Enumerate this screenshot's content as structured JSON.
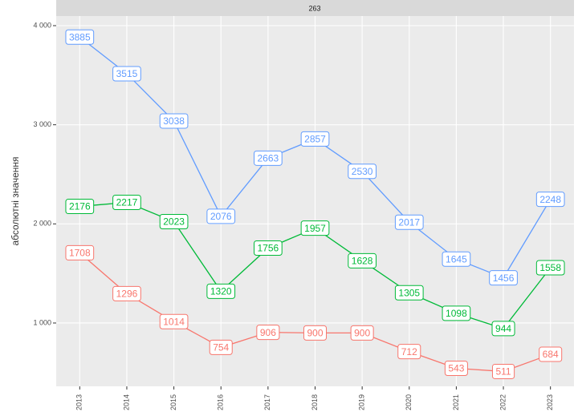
{
  "chart_data": {
    "type": "line",
    "title": "263",
    "ylabel": "абсолютні значення",
    "categories": [
      "2013",
      "2014",
      "2015",
      "2016",
      "2017",
      "2018",
      "2019",
      "2020",
      "2021",
      "2022",
      "2023"
    ],
    "series": [
      {
        "color": "#619CFF",
        "values": [
          3885,
          3515,
          3038,
          2076,
          2663,
          2857,
          2530,
          2017,
          1645,
          1456,
          2248
        ]
      },
      {
        "color": "#00BA38",
        "values": [
          2176,
          2217,
          2023,
          1320,
          1756,
          1957,
          1628,
          1305,
          1098,
          944,
          1558
        ]
      },
      {
        "color": "#F8766D",
        "values": [
          1708,
          1296,
          1014,
          754,
          906,
          900,
          900,
          712,
          543,
          511,
          684
        ]
      }
    ],
    "ylim": [
      361,
      4097
    ],
    "yticks": [
      {
        "value": 1000,
        "label": "1 000"
      },
      {
        "value": 2000,
        "label": "2 000"
      },
      {
        "value": 3000,
        "label": "3 000"
      },
      {
        "value": 4000,
        "label": "4 000"
      }
    ],
    "grid": true
  }
}
